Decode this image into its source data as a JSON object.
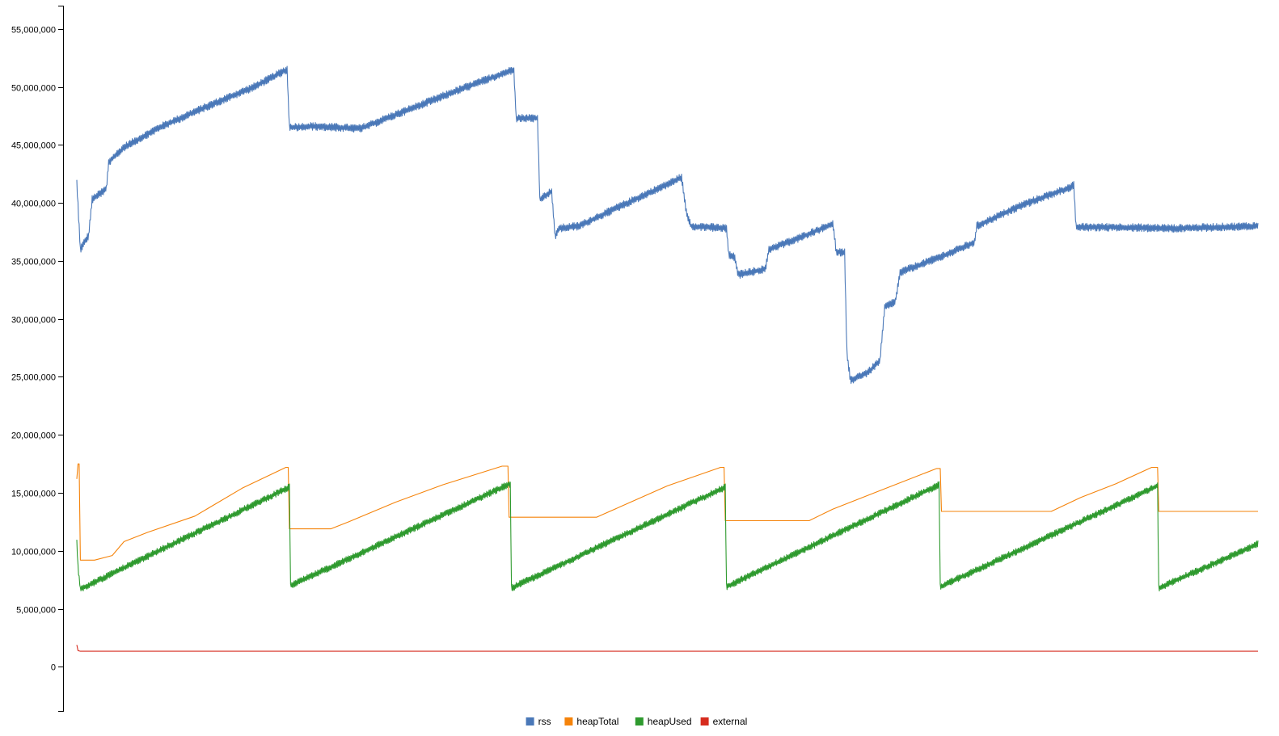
{
  "chart_data": {
    "type": "line",
    "title": "",
    "xlabel": "",
    "ylabel": "",
    "ylim": [
      -3800000,
      57000000
    ],
    "x_range": [
      0,
      1000
    ],
    "grid": false,
    "legend_placement": "bottom-center",
    "y_ticks": [
      {
        "value": 0,
        "label": "0"
      },
      {
        "value": 5000000,
        "label": "5,000,000"
      },
      {
        "value": 10000000,
        "label": "10,000,000"
      },
      {
        "value": 15000000,
        "label": "15,000,000"
      },
      {
        "value": 20000000,
        "label": "20,000,000"
      },
      {
        "value": 25000000,
        "label": "25,000,000"
      },
      {
        "value": 30000000,
        "label": "30,000,000"
      },
      {
        "value": 35000000,
        "label": "35,000,000"
      },
      {
        "value": 40000000,
        "label": "40,000,000"
      },
      {
        "value": 45000000,
        "label": "45,000,000"
      },
      {
        "value": 50000000,
        "label": "50,000,000"
      },
      {
        "value": 55000000,
        "label": "55,000,000"
      }
    ],
    "series": [
      {
        "name": "rss",
        "color": "#4a78b8",
        "jitter": 350000,
        "points": [
          [
            0,
            41700000
          ],
          [
            3,
            36000000
          ],
          [
            10,
            37200000
          ],
          [
            13,
            40300000
          ],
          [
            25,
            41200000
          ],
          [
            27,
            43500000
          ],
          [
            40,
            44800000
          ],
          [
            70,
            46500000
          ],
          [
            110,
            48300000
          ],
          [
            150,
            50000000
          ],
          [
            178,
            51500000
          ],
          [
            180,
            46500000
          ],
          [
            200,
            46600000
          ],
          [
            240,
            46400000
          ],
          [
            270,
            47600000
          ],
          [
            320,
            49600000
          ],
          [
            370,
            51500000
          ],
          [
            372,
            47300000
          ],
          [
            390,
            47300000
          ],
          [
            392,
            40300000
          ],
          [
            402,
            41000000
          ],
          [
            405,
            37000000
          ],
          [
            408,
            37800000
          ],
          [
            425,
            38000000
          ],
          [
            460,
            39700000
          ],
          [
            500,
            41600000
          ],
          [
            512,
            42200000
          ],
          [
            516,
            39200000
          ],
          [
            520,
            38000000
          ],
          [
            550,
            37800000
          ],
          [
            552,
            35500000
          ],
          [
            557,
            35300000
          ],
          [
            560,
            33800000
          ],
          [
            583,
            34300000
          ],
          [
            586,
            36000000
          ],
          [
            610,
            36900000
          ],
          [
            640,
            38200000
          ],
          [
            643,
            35800000
          ],
          [
            650,
            35700000
          ],
          [
            652,
            27000000
          ],
          [
            655,
            24700000
          ],
          [
            670,
            25400000
          ],
          [
            680,
            26400000
          ],
          [
            684,
            31000000
          ],
          [
            693,
            31500000
          ],
          [
            697,
            34000000
          ],
          [
            740,
            35700000
          ],
          [
            760,
            36600000
          ],
          [
            762,
            38000000
          ],
          [
            800,
            39800000
          ],
          [
            840,
            41300000
          ],
          [
            844,
            41500000
          ],
          [
            846,
            37900000
          ],
          [
            880,
            37900000
          ],
          [
            930,
            37800000
          ],
          [
            1000,
            38000000
          ]
        ]
      },
      {
        "name": "heapTotal",
        "color": "#f5830a",
        "jitter": 0,
        "points": [
          [
            0,
            16200000
          ],
          [
            1,
            17500000
          ],
          [
            2,
            17500000
          ],
          [
            3,
            9200000
          ],
          [
            15,
            9200000
          ],
          [
            30,
            9600000
          ],
          [
            40,
            10800000
          ],
          [
            60,
            11600000
          ],
          [
            100,
            13000000
          ],
          [
            140,
            15400000
          ],
          [
            177,
            17200000
          ],
          [
            179,
            17200000
          ],
          [
            180,
            11900000
          ],
          [
            215,
            11900000
          ],
          [
            230,
            12500000
          ],
          [
            270,
            14200000
          ],
          [
            310,
            15700000
          ],
          [
            360,
            17300000
          ],
          [
            365,
            17300000
          ],
          [
            366,
            12900000
          ],
          [
            440,
            12900000
          ],
          [
            460,
            13800000
          ],
          [
            500,
            15600000
          ],
          [
            545,
            17200000
          ],
          [
            548,
            17200000
          ],
          [
            549,
            12600000
          ],
          [
            620,
            12600000
          ],
          [
            640,
            13600000
          ],
          [
            680,
            15200000
          ],
          [
            728,
            17100000
          ],
          [
            731,
            17100000
          ],
          [
            732,
            13400000
          ],
          [
            825,
            13400000
          ],
          [
            850,
            14600000
          ],
          [
            880,
            15800000
          ],
          [
            910,
            17200000
          ],
          [
            915,
            17200000
          ],
          [
            916,
            13400000
          ],
          [
            1000,
            13400000
          ]
        ]
      },
      {
        "name": "heapUsed",
        "color": "#2e9a2e",
        "jitter": 300000,
        "points": [
          [
            0,
            10800000
          ],
          [
            1,
            8700000
          ],
          [
            3,
            6700000
          ],
          [
            180,
            15500000
          ],
          [
            181,
            7000000
          ],
          [
            367,
            15800000
          ],
          [
            368,
            6800000
          ],
          [
            549,
            15500000
          ],
          [
            550,
            6900000
          ],
          [
            730,
            15700000
          ],
          [
            731,
            6900000
          ],
          [
            915,
            15600000
          ],
          [
            916,
            6800000
          ],
          [
            1000,
            10600000
          ]
        ]
      },
      {
        "name": "external",
        "color": "#d62b1e",
        "jitter": 0,
        "points": [
          [
            0,
            1900000
          ],
          [
            1,
            1400000
          ],
          [
            3,
            1350000
          ],
          [
            1000,
            1350000
          ]
        ]
      }
    ]
  }
}
